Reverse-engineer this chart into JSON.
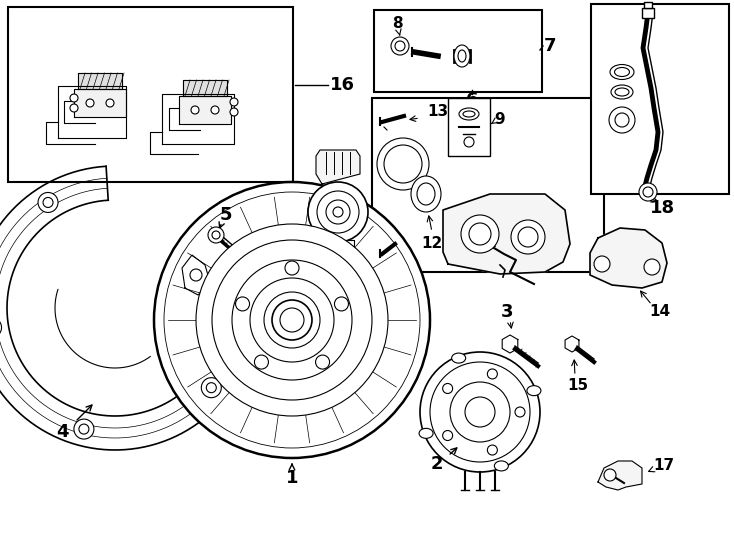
{
  "bg_color": "#ffffff",
  "line_color": "#000000",
  "fig_width": 7.34,
  "fig_height": 5.4,
  "dpi": 100,
  "lw_thin": 0.8,
  "lw_med": 1.2,
  "lw_thick": 1.8
}
